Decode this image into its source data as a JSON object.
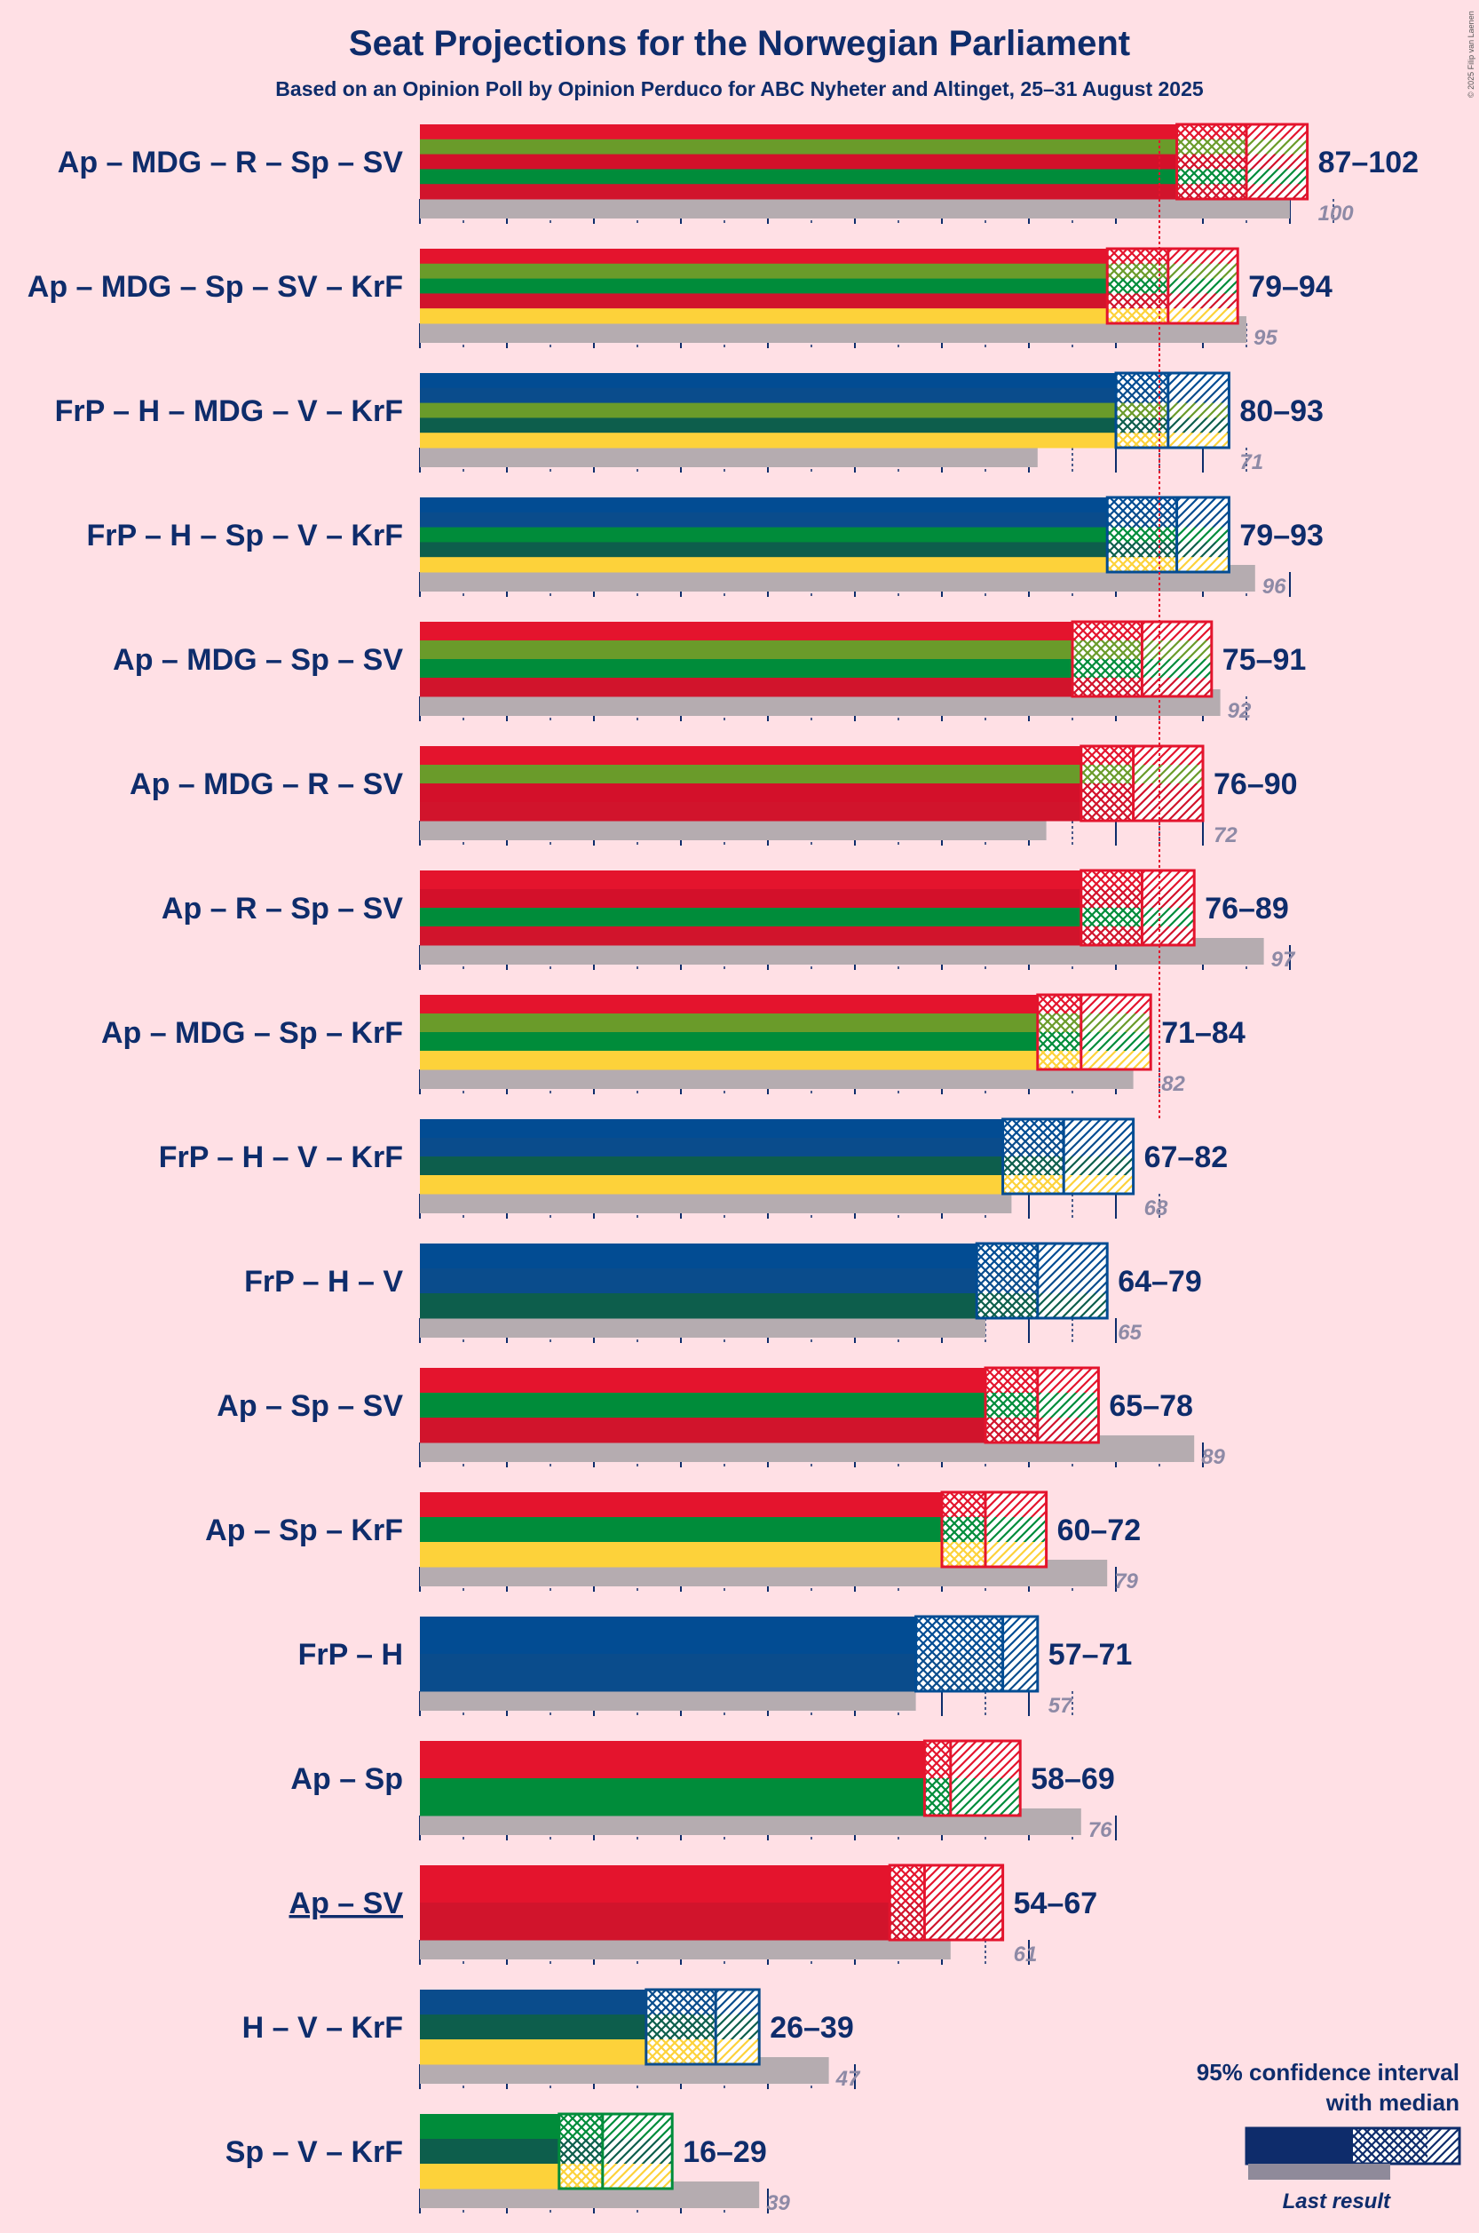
{
  "chart_data": {
    "type": "bar",
    "title": "Seat Projections for the Norwegian Parliament",
    "subtitle": "Based on an Opinion Poll by Opinion Perduco for ABC Nyheter and Altinget, 25–31 August 2025",
    "copyright": "© 2025 Filip van Laenen",
    "majority": 85,
    "grid_step": 10,
    "colors": {
      "Ap": "#e4142d",
      "MDG": "#6a9b2a",
      "R": "#d3102a",
      "Sp": "#008c3a",
      "SV": "#d1142c",
      "KrF": "#fdd23a",
      "FrP": "#024c93",
      "H": "#0a4c8c",
      "V": "#0d5e4c",
      "last": "#b5acb0",
      "text": "#0e2c6b"
    },
    "coalitions": [
      {
        "label": "Ap – MDG – R – Sp – SV",
        "parties": [
          "Ap",
          "MDG",
          "R",
          "Sp",
          "SV"
        ],
        "low": 87,
        "median": 95,
        "high": 102,
        "range_label": "87–102",
        "last": 100,
        "last_label": "100",
        "underline": false
      },
      {
        "label": "Ap – MDG – Sp – SV – KrF",
        "parties": [
          "Ap",
          "MDG",
          "Sp",
          "SV",
          "KrF"
        ],
        "low": 79,
        "median": 86,
        "high": 94,
        "range_label": "79–94",
        "last": 95,
        "last_label": "95",
        "underline": false
      },
      {
        "label": "FrP – H – MDG – V – KrF",
        "parties": [
          "FrP",
          "H",
          "MDG",
          "V",
          "KrF"
        ],
        "low": 80,
        "median": 86,
        "high": 93,
        "range_label": "80–93",
        "last": 71,
        "last_label": "71",
        "underline": false
      },
      {
        "label": "FrP – H – Sp – V – KrF",
        "parties": [
          "FrP",
          "H",
          "Sp",
          "V",
          "KrF"
        ],
        "low": 79,
        "median": 87,
        "high": 93,
        "range_label": "79–93",
        "last": 96,
        "last_label": "96",
        "underline": false
      },
      {
        "label": "Ap – MDG – Sp – SV",
        "parties": [
          "Ap",
          "MDG",
          "Sp",
          "SV"
        ],
        "low": 75,
        "median": 83,
        "high": 91,
        "range_label": "75–91",
        "last": 92,
        "last_label": "92",
        "underline": false
      },
      {
        "label": "Ap – MDG – R – SV",
        "parties": [
          "Ap",
          "MDG",
          "R",
          "SV"
        ],
        "low": 76,
        "median": 82,
        "high": 90,
        "range_label": "76–90",
        "last": 72,
        "last_label": "72",
        "underline": false
      },
      {
        "label": "Ap – R – Sp – SV",
        "parties": [
          "Ap",
          "R",
          "Sp",
          "SV"
        ],
        "low": 76,
        "median": 83,
        "high": 89,
        "range_label": "76–89",
        "last": 97,
        "last_label": "97",
        "underline": false
      },
      {
        "label": "Ap – MDG – Sp – KrF",
        "parties": [
          "Ap",
          "MDG",
          "Sp",
          "KrF"
        ],
        "low": 71,
        "median": 76,
        "high": 84,
        "range_label": "71–84",
        "last": 82,
        "last_label": "82",
        "underline": false
      },
      {
        "label": "FrP – H – V – KrF",
        "parties": [
          "FrP",
          "H",
          "V",
          "KrF"
        ],
        "low": 67,
        "median": 74,
        "high": 82,
        "range_label": "67–82",
        "last": 68,
        "last_label": "68",
        "underline": false
      },
      {
        "label": "FrP – H – V",
        "parties": [
          "FrP",
          "H",
          "V"
        ],
        "low": 64,
        "median": 71,
        "high": 79,
        "range_label": "64–79",
        "last": 65,
        "last_label": "65",
        "underline": false
      },
      {
        "label": "Ap – Sp – SV",
        "parties": [
          "Ap",
          "Sp",
          "SV"
        ],
        "low": 65,
        "median": 71,
        "high": 78,
        "range_label": "65–78",
        "last": 89,
        "last_label": "89",
        "underline": false
      },
      {
        "label": "Ap – Sp – KrF",
        "parties": [
          "Ap",
          "Sp",
          "KrF"
        ],
        "low": 60,
        "median": 65,
        "high": 72,
        "range_label": "60–72",
        "last": 79,
        "last_label": "79",
        "underline": false
      },
      {
        "label": "FrP – H",
        "parties": [
          "FrP",
          "H"
        ],
        "low": 57,
        "median": 67,
        "high": 71,
        "range_label": "57–71",
        "last": 57,
        "last_label": "57",
        "underline": false
      },
      {
        "label": "Ap – Sp",
        "parties": [
          "Ap",
          "Sp"
        ],
        "low": 58,
        "median": 61,
        "high": 69,
        "range_label": "58–69",
        "last": 76,
        "last_label": "76",
        "underline": false
      },
      {
        "label": "Ap – SV",
        "parties": [
          "Ap",
          "SV"
        ],
        "low": 54,
        "median": 58,
        "high": 67,
        "range_label": "54–67",
        "last": 61,
        "last_label": "61",
        "underline": true
      },
      {
        "label": "H – V – KrF",
        "parties": [
          "H",
          "V",
          "KrF"
        ],
        "low": 26,
        "median": 34,
        "high": 39,
        "range_label": "26–39",
        "last": 47,
        "last_label": "47",
        "underline": false
      },
      {
        "label": "Sp – V – KrF",
        "parties": [
          "Sp",
          "V",
          "KrF"
        ],
        "low": 16,
        "median": 21,
        "high": 29,
        "range_label": "16–29",
        "last": 39,
        "last_label": "39",
        "underline": false
      }
    ],
    "legend": {
      "title_line1": "95% confidence interval",
      "title_line2": "with median",
      "last_result": "Last result",
      "placement": "bottom-right"
    }
  }
}
